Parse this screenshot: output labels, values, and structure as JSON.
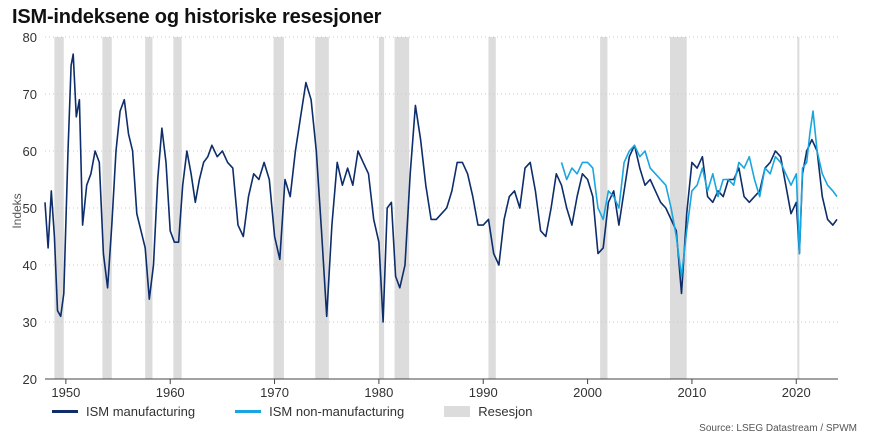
{
  "title": "ISM-indeksene og historiske resesjoner",
  "source": "Source: LSEG Datastream / SPWM",
  "colors": {
    "manufacturing": "#0d2d6b",
    "non_manufacturing": "#19a6e0",
    "recession": "#dcdcdc",
    "grid": "#c8c8c8"
  },
  "chart_data": {
    "type": "line",
    "title": "ISM-indeksene og historiske resesjoner",
    "ylabel": "Indeks",
    "xlabel": "",
    "xlim": [
      1948,
      2024
    ],
    "ylim": [
      20,
      80
    ],
    "yticks": [
      20,
      30,
      40,
      50,
      60,
      70,
      80
    ],
    "xticks": [
      1950,
      1960,
      1970,
      1980,
      1990,
      2000,
      2010,
      2020
    ],
    "grid": "horizontal-dashed",
    "legend_position": "bottom-left",
    "legend": [
      "ISM manufacturing",
      "ISM non-manufacturing",
      "Resesjon"
    ],
    "recessions": [
      [
        1948.9,
        1949.8
      ],
      [
        1953.5,
        1954.4
      ],
      [
        1957.6,
        1958.3
      ],
      [
        1960.3,
        1961.1
      ],
      [
        1969.9,
        1970.9
      ],
      [
        1973.9,
        1975.2
      ],
      [
        1980.0,
        1980.5
      ],
      [
        1981.5,
        1982.9
      ],
      [
        1990.5,
        1991.2
      ],
      [
        2001.2,
        2001.9
      ],
      [
        2007.9,
        2009.5
      ],
      [
        2020.1,
        2020.3
      ]
    ],
    "series": [
      {
        "name": "ISM manufacturing",
        "x": [
          1948,
          1948.3,
          1948.6,
          1948.9,
          1949.2,
          1949.5,
          1949.8,
          1950.2,
          1950.5,
          1950.7,
          1951.0,
          1951.3,
          1951.6,
          1952.0,
          1952.4,
          1952.8,
          1953.2,
          1953.6,
          1954.0,
          1954.4,
          1954.8,
          1955.2,
          1955.6,
          1956.0,
          1956.4,
          1956.8,
          1957.2,
          1957.6,
          1958.0,
          1958.4,
          1958.8,
          1959.2,
          1959.6,
          1960.0,
          1960.4,
          1960.8,
          1961.2,
          1961.6,
          1962.0,
          1962.4,
          1962.8,
          1963.2,
          1963.6,
          1964.0,
          1964.5,
          1965.0,
          1965.5,
          1966.0,
          1966.5,
          1967.0,
          1967.5,
          1968.0,
          1968.5,
          1969.0,
          1969.5,
          1970.0,
          1970.5,
          1971.0,
          1971.5,
          1972.0,
          1972.5,
          1973.0,
          1973.5,
          1974.0,
          1974.5,
          1975.0,
          1975.5,
          1976.0,
          1976.5,
          1977.0,
          1977.5,
          1978.0,
          1978.5,
          1979.0,
          1979.5,
          1980.0,
          1980.4,
          1980.8,
          1981.2,
          1981.6,
          1982.0,
          1982.5,
          1983.0,
          1983.5,
          1984.0,
          1984.5,
          1985.0,
          1985.5,
          1986.0,
          1986.5,
          1987.0,
          1987.5,
          1988.0,
          1988.5,
          1989.0,
          1989.5,
          1990.0,
          1990.5,
          1991.0,
          1991.5,
          1992.0,
          1992.5,
          1993.0,
          1993.5,
          1994.0,
          1994.5,
          1995.0,
          1995.5,
          1996.0,
          1996.5,
          1997.0,
          1997.5,
          1998.0,
          1998.5,
          1999.0,
          1999.5,
          2000.0,
          2000.5,
          2001.0,
          2001.5,
          2002.0,
          2002.5,
          2003.0,
          2003.5,
          2004.0,
          2004.5,
          2005.0,
          2005.5,
          2006.0,
          2006.5,
          2007.0,
          2007.5,
          2008.0,
          2008.5,
          2009.0,
          2009.5,
          2010.0,
          2010.5,
          2011.0,
          2011.5,
          2012.0,
          2012.5,
          2013.0,
          2013.5,
          2014.0,
          2014.5,
          2015.0,
          2015.5,
          2016.0,
          2016.5,
          2017.0,
          2017.5,
          2018.0,
          2018.5,
          2019.0,
          2019.5,
          2020.0,
          2020.3,
          2020.6,
          2021.0,
          2021.5,
          2022.0,
          2022.5,
          2023.0,
          2023.5,
          2023.9
        ],
        "values": [
          51,
          43,
          53,
          45,
          32,
          31,
          35,
          60,
          75,
          77,
          66,
          69,
          47,
          54,
          56,
          60,
          58,
          42,
          36,
          47,
          60,
          67,
          69,
          63,
          60,
          49,
          46,
          43,
          34,
          40,
          55,
          64,
          58,
          46,
          44,
          44,
          54,
          60,
          56,
          51,
          55,
          58,
          59,
          61,
          59,
          60,
          58,
          57,
          47,
          45,
          52,
          56,
          55,
          58,
          55,
          45,
          41,
          55,
          52,
          60,
          66,
          72,
          69,
          60,
          46,
          31,
          47,
          58,
          54,
          57,
          54,
          60,
          58,
          56,
          48,
          44,
          30,
          50,
          51,
          38,
          36,
          40,
          56,
          68,
          62,
          54,
          48,
          48,
          49,
          50,
          53,
          58,
          58,
          56,
          52,
          47,
          47,
          48,
          42,
          40,
          48,
          52,
          53,
          50,
          57,
          58,
          53,
          46,
          45,
          50,
          56,
          54,
          50,
          47,
          52,
          56,
          55,
          52,
          42,
          43,
          51,
          53,
          47,
          53,
          59,
          61,
          57,
          54,
          55,
          53,
          51,
          50,
          48,
          46,
          35,
          49,
          58,
          57,
          59,
          52,
          51,
          53,
          52,
          55,
          55,
          57,
          52,
          51,
          52,
          53,
          57,
          58,
          60,
          59,
          54,
          49,
          51,
          42,
          56,
          60,
          62,
          60,
          52,
          48,
          47,
          48
        ]
      },
      {
        "name": "ISM non-manufacturing",
        "x": [
          1997.5,
          1998.0,
          1998.5,
          1999.0,
          1999.5,
          2000.0,
          2000.5,
          2001.0,
          2001.5,
          2002.0,
          2002.5,
          2003.0,
          2003.5,
          2004.0,
          2004.5,
          2005.0,
          2005.5,
          2006.0,
          2006.5,
          2007.0,
          2007.5,
          2008.0,
          2008.5,
          2009.0,
          2009.5,
          2010.0,
          2010.5,
          2011.0,
          2011.5,
          2012.0,
          2012.5,
          2013.0,
          2013.5,
          2014.0,
          2014.5,
          2015.0,
          2015.5,
          2016.0,
          2016.5,
          2017.0,
          2017.5,
          2018.0,
          2018.5,
          2019.0,
          2019.5,
          2020.0,
          2020.3,
          2020.6,
          2021.0,
          2021.3,
          2021.6,
          2022.0,
          2022.5,
          2023.0,
          2023.5,
          2023.9
        ],
        "values": [
          58,
          55,
          57,
          56,
          58,
          58,
          57,
          50,
          48,
          53,
          52,
          50,
          58,
          60,
          61,
          59,
          60,
          57,
          56,
          55,
          54,
          50,
          45,
          38,
          46,
          53,
          54,
          57,
          53,
          56,
          52,
          55,
          55,
          54,
          58,
          57,
          59,
          55,
          52,
          57,
          56,
          59,
          58,
          56,
          54,
          56,
          42,
          57,
          58,
          63,
          67,
          60,
          56,
          54,
          53,
          52
        ]
      }
    ]
  }
}
